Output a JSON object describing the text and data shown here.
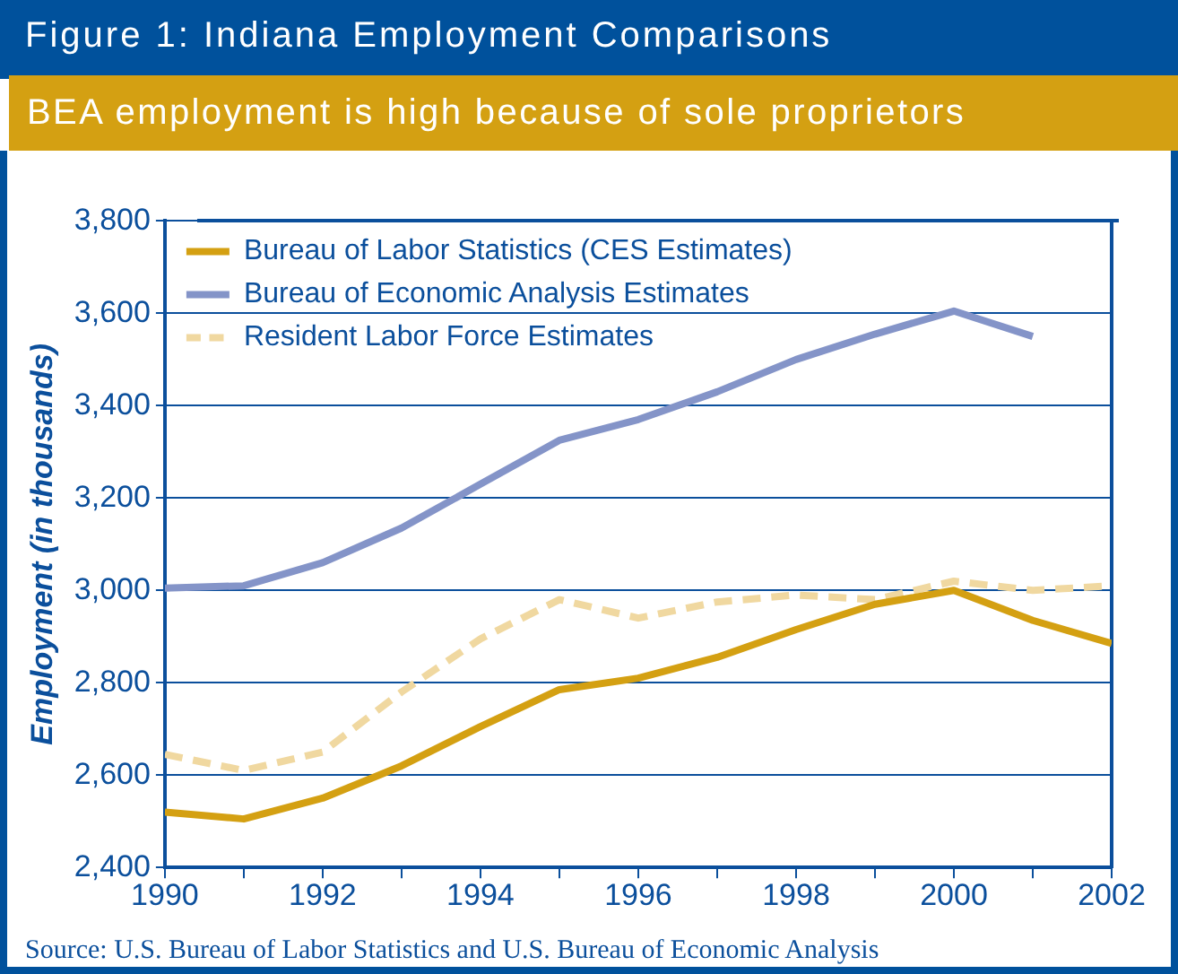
{
  "chart_data": {
    "type": "line",
    "title": "Figure 1: Indiana Employment Comparisons",
    "subtitle": "BEA employment is high because of sole proprietors",
    "ylabel": "Employment (in thousands)",
    "x": [
      1990,
      1991,
      1992,
      1993,
      1994,
      1995,
      1996,
      1997,
      1998,
      1999,
      2000,
      2001,
      2002
    ],
    "series": [
      {
        "name": "Bureau of Labor Statistics (CES Estimates)",
        "color": "#d4a012",
        "values": [
          2520,
          2505,
          2550,
          2620,
          2705,
          2785,
          2810,
          2855,
          2915,
          2970,
          3000,
          2935,
          2885
        ]
      },
      {
        "name": "Bureau of Economic Analysis Estimates",
        "color": "#8494c8",
        "values": [
          3005,
          3010,
          3060,
          3135,
          3230,
          3325,
          3370,
          3430,
          3500,
          3555,
          3605,
          3550,
          null
        ]
      },
      {
        "name": "Resident Labor Force Estimates",
        "color": "#f0d8a0",
        "line_style": "dashed",
        "values": [
          2645,
          2610,
          2650,
          2780,
          2895,
          2980,
          2940,
          2975,
          2990,
          2980,
          3020,
          3000,
          3010
        ]
      }
    ],
    "xlim": [
      1990,
      2002
    ],
    "xticks": [
      1990,
      {
        "value": 1991,
        "label": null
      },
      1992,
      {
        "value": 1993,
        "label": null
      },
      1994,
      {
        "value": 1995,
        "label": null
      },
      1996,
      {
        "value": 1997,
        "label": null
      },
      1998,
      {
        "value": 1999,
        "label": null
      },
      2000,
      {
        "value": 2001,
        "label": null
      },
      2002
    ],
    "ylim": [
      2400,
      3800
    ],
    "yticks": [
      {
        "value": 2400,
        "label": "2,400"
      },
      {
        "value": 2600,
        "label": "2,600"
      },
      {
        "value": 2800,
        "label": "2,800"
      },
      {
        "value": 3000,
        "label": "3,000"
      },
      {
        "value": 3200,
        "label": "3,200"
      },
      {
        "value": 3400,
        "label": "3,400"
      },
      {
        "value": 3600,
        "label": "3,600"
      },
      {
        "value": 3800,
        "label": "3,800"
      }
    ],
    "grid": "y",
    "legend": "top left",
    "line_style": "solid",
    "marker": "none",
    "annotations": [
      "Source: U.S. Bureau of Labor Statistics and U.S. Bureau of Economic Analysis"
    ]
  }
}
